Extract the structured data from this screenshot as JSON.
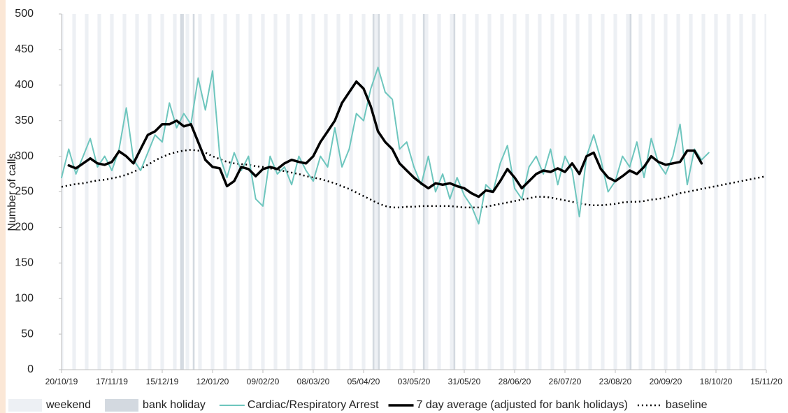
{
  "chart_data": {
    "type": "line",
    "y_label": "Number of calls",
    "x": [
      "20/10/19",
      "24/10/19",
      "28/10/19",
      "01/11/19",
      "05/11/19",
      "09/11/19",
      "13/11/19",
      "17/11/19",
      "21/11/19",
      "25/11/19",
      "29/11/19",
      "03/12/19",
      "07/12/19",
      "11/12/19",
      "15/12/19",
      "19/12/19",
      "23/12/19",
      "27/12/19",
      "31/12/19",
      "04/01/20",
      "08/01/20",
      "12/01/20",
      "16/01/20",
      "20/01/20",
      "24/01/20",
      "28/01/20",
      "01/02/20",
      "05/02/20",
      "09/02/20",
      "13/02/20",
      "17/02/20",
      "21/02/20",
      "25/02/20",
      "29/02/20",
      "04/03/20",
      "08/03/20",
      "12/03/20",
      "16/03/20",
      "20/03/20",
      "24/03/20",
      "28/03/20",
      "01/04/20",
      "05/04/20",
      "09/04/20",
      "13/04/20",
      "17/04/20",
      "21/04/20",
      "25/04/20",
      "29/04/20",
      "03/05/20",
      "07/05/20",
      "11/05/20",
      "15/05/20",
      "19/05/20",
      "23/05/20",
      "27/05/20",
      "31/05/20",
      "04/06/20",
      "08/06/20",
      "12/06/20",
      "16/06/20",
      "20/06/20",
      "24/06/20",
      "28/06/20",
      "02/07/20",
      "06/07/20",
      "10/07/20",
      "14/07/20",
      "18/07/20",
      "22/07/20",
      "26/07/20",
      "30/07/20",
      "03/08/20",
      "07/08/20",
      "11/08/20",
      "15/08/20",
      "19/08/20",
      "23/08/20",
      "27/08/20",
      "31/08/20",
      "04/09/20",
      "08/09/20",
      "12/09/20",
      "16/09/20",
      "20/09/20",
      "24/09/20",
      "28/09/20",
      "02/10/20",
      "06/10/20",
      "10/10/20",
      "14/10/20",
      "18/10/20",
      "22/10/20",
      "26/10/20",
      "30/10/20",
      "03/11/20",
      "07/11/20",
      "11/11/20",
      "15/11/20"
    ],
    "xlim": [
      "20/10/19",
      "15/11/20"
    ],
    "xticks": [
      "20/10/19",
      "17/11/19",
      "15/12/19",
      "12/01/20",
      "09/02/20",
      "08/03/20",
      "05/04/20",
      "03/05/20",
      "31/05/20",
      "28/06/20",
      "26/07/20",
      "23/08/20",
      "20/09/20",
      "18/10/20",
      "15/11/20"
    ],
    "ylim": [
      0,
      500
    ],
    "yticks": [
      0,
      50,
      100,
      150,
      200,
      250,
      300,
      350,
      400,
      450,
      500
    ],
    "grid": false,
    "bands": [
      {
        "name": "weekend",
        "color": "#edf0f4"
      },
      {
        "name": "bank holiday",
        "color": "#d3d9e0",
        "dates": [
          "25/12/19",
          "26/12/19",
          "01/01/20",
          "10/04/20",
          "13/04/20",
          "08/05/20",
          "25/05/20",
          "31/08/20"
        ]
      }
    ],
    "series": [
      {
        "name": "Cardiac/Respiratory Arrest",
        "color": "#6ec6be",
        "width": 2,
        "style": "solid",
        "values": [
          270,
          310,
          275,
          300,
          325,
          285,
          300,
          280,
          310,
          368,
          295,
          280,
          305,
          330,
          320,
          375,
          340,
          360,
          345,
          410,
          365,
          420,
          300,
          270,
          305,
          280,
          300,
          240,
          230,
          300,
          275,
          285,
          260,
          300,
          280,
          265,
          300,
          285,
          340,
          285,
          310,
          360,
          350,
          395,
          425,
          390,
          380,
          310,
          320,
          285,
          260,
          300,
          250,
          275,
          240,
          270,
          245,
          230,
          205,
          260,
          250,
          290,
          315,
          255,
          240,
          285,
          300,
          275,
          310,
          260,
          300,
          280,
          215,
          300,
          330,
          295,
          250,
          265,
          300,
          285,
          320,
          270,
          325,
          290,
          275,
          300,
          345,
          260,
          310,
          295,
          305,
          null,
          null,
          null,
          null,
          null,
          null,
          null,
          null
        ]
      },
      {
        "name": "7 day average (adjusted for bank holidays)",
        "color": "#000000",
        "width": 3.5,
        "style": "solid",
        "values": [
          null,
          287,
          283,
          290,
          297,
          290,
          288,
          292,
          307,
          300,
          290,
          310,
          330,
          335,
          345,
          345,
          350,
          342,
          345,
          320,
          295,
          285,
          283,
          258,
          265,
          285,
          282,
          272,
          282,
          285,
          282,
          290,
          295,
          292,
          290,
          300,
          320,
          335,
          350,
          375,
          390,
          405,
          395,
          370,
          335,
          320,
          310,
          290,
          280,
          270,
          262,
          255,
          262,
          260,
          262,
          258,
          255,
          248,
          243,
          252,
          250,
          265,
          282,
          270,
          255,
          265,
          275,
          280,
          278,
          283,
          278,
          290,
          275,
          300,
          305,
          282,
          270,
          265,
          272,
          280,
          275,
          285,
          300,
          292,
          288,
          290,
          292,
          308,
          308,
          290,
          null,
          null,
          null,
          null,
          null,
          null,
          null,
          null,
          null
        ]
      },
      {
        "name": "baseline",
        "color": "#000000",
        "width": 2.5,
        "style": "dotted",
        "values": [
          257,
          259,
          261,
          262,
          264,
          266,
          267,
          269,
          271,
          274,
          278,
          283,
          288,
          294,
          299,
          303,
          306,
          308,
          309,
          308,
          305,
          300,
          296,
          292,
          290,
          289,
          288,
          286,
          285,
          283,
          281,
          279,
          277,
          275,
          272,
          270,
          268,
          265,
          262,
          258,
          254,
          249,
          244,
          239,
          234,
          230,
          228,
          228,
          229,
          229,
          230,
          230,
          230,
          230,
          230,
          229,
          228,
          228,
          228,
          229,
          231,
          233,
          235,
          237,
          239,
          241,
          243,
          243,
          242,
          240,
          238,
          236,
          234,
          232,
          231,
          231,
          232,
          233,
          235,
          236,
          236,
          237,
          239,
          240,
          242,
          245,
          248,
          250,
          252,
          254,
          256,
          258,
          260,
          262,
          264,
          266,
          268,
          270,
          272
        ]
      }
    ]
  }
}
